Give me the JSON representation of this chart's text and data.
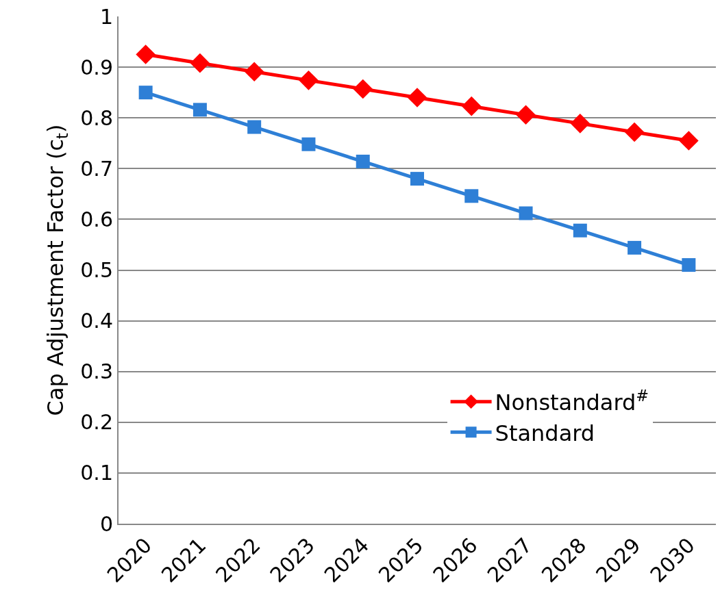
{
  "chart_data": {
    "type": "line",
    "ylabel": "Cap Adjustment Factor (c$_{t}$)",
    "categories": [
      "2020",
      "2021",
      "2022",
      "2023",
      "2024",
      "2025",
      "2026",
      "2027",
      "2028",
      "2029",
      "2030"
    ],
    "series": [
      {
        "name": "Nonstandard$^{#}$",
        "color": "#ff0000",
        "marker": "diamond",
        "values": [
          0.925,
          0.908,
          0.891,
          0.874,
          0.857,
          0.84,
          0.823,
          0.806,
          0.789,
          0.772,
          0.755
        ]
      },
      {
        "name": "Standard",
        "color": "#2e7fd6",
        "marker": "square",
        "values": [
          0.85,
          0.816,
          0.782,
          0.748,
          0.714,
          0.68,
          0.646,
          0.612,
          0.578,
          0.544,
          0.51
        ]
      }
    ],
    "ylim": [
      0,
      1
    ],
    "yticks": [
      0,
      0.1,
      0.2,
      0.3,
      0.4,
      0.5,
      0.6,
      0.7,
      0.8,
      0.9,
      1
    ],
    "grid": "y",
    "legend": "bottom right",
    "line_style": "solid"
  }
}
